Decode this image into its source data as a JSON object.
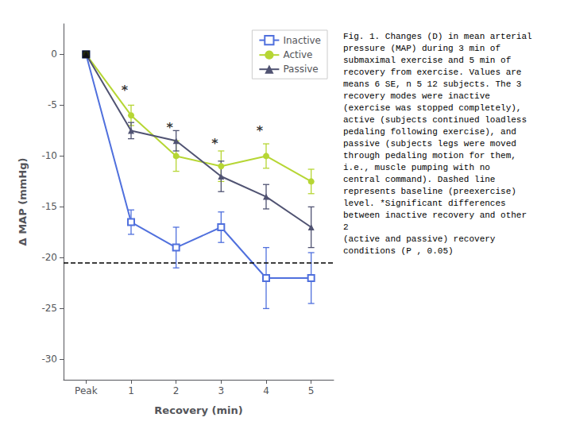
{
  "chart_data": {
    "type": "line",
    "xlabel": "Recovery (min)",
    "ylabel": "Δ MAP (mmHg)",
    "categories": [
      "Peak",
      "1",
      "2",
      "3",
      "4",
      "5"
    ],
    "series": [
      {
        "name": "Inactive",
        "marker": "square_open",
        "values": [
          0,
          -16.5,
          -19.0,
          -17.0,
          -22.0,
          -22.0
        ],
        "errors": [
          0,
          1.2,
          2.0,
          1.5,
          3.0,
          2.5
        ]
      },
      {
        "name": "Active",
        "marker": "circle",
        "values": [
          0,
          -6.0,
          -10.0,
          -11.0,
          -10.0,
          -12.5
        ],
        "errors": [
          0,
          1.0,
          1.5,
          1.5,
          1.2,
          1.2
        ]
      },
      {
        "name": "Passive",
        "marker": "triangle",
        "values": [
          0,
          -7.5,
          -8.5,
          -12.0,
          -14.0,
          -17.0
        ],
        "errors": [
          0,
          0.8,
          1.0,
          1.5,
          1.2,
          2.0
        ]
      }
    ],
    "points": [
      {
        "x": "Peak",
        "y": 0,
        "marker": "square",
        "color": "#000000"
      }
    ],
    "reference_line": {
      "y": -20.5,
      "line_style": "dashed"
    },
    "annotations": [
      {
        "text": "*",
        "x": "1",
        "y": -4.5
      },
      {
        "text": "*",
        "x": "2",
        "y": -8.2
      },
      {
        "text": "*",
        "x": "3",
        "y": -9.8
      },
      {
        "text": "*",
        "x": "4",
        "y": -8.5
      }
    ],
    "ylim": [
      -32,
      3
    ],
    "yticks": [
      0,
      -5,
      -10,
      -15,
      -20,
      -25,
      -30
    ],
    "grid": false,
    "legend": "upper right",
    "caption": "Fig. 1. Changes (D) in mean arterial\npressure (MAP) during 3 min of\nsubmaximal exercise and 5 min of\nrecovery from exercise. Values are\nmeans 6 SE, n 5 12 subjects. The 3\nrecovery modes were inactive\n(exercise was stopped completely),\nactive (subjects continued loadless\npedaling following exercise), and\npassive (subjects legs were moved\nthrough pedaling motion for them,\ni.e., muscle pumping with no\ncentral command). Dashed line\nrepresents baseline (preexercise)\nlevel. *Significant differences\nbetween inactive recovery and other\n2\n(active and passive) recovery\nconditions (P , 0.05)"
  }
}
